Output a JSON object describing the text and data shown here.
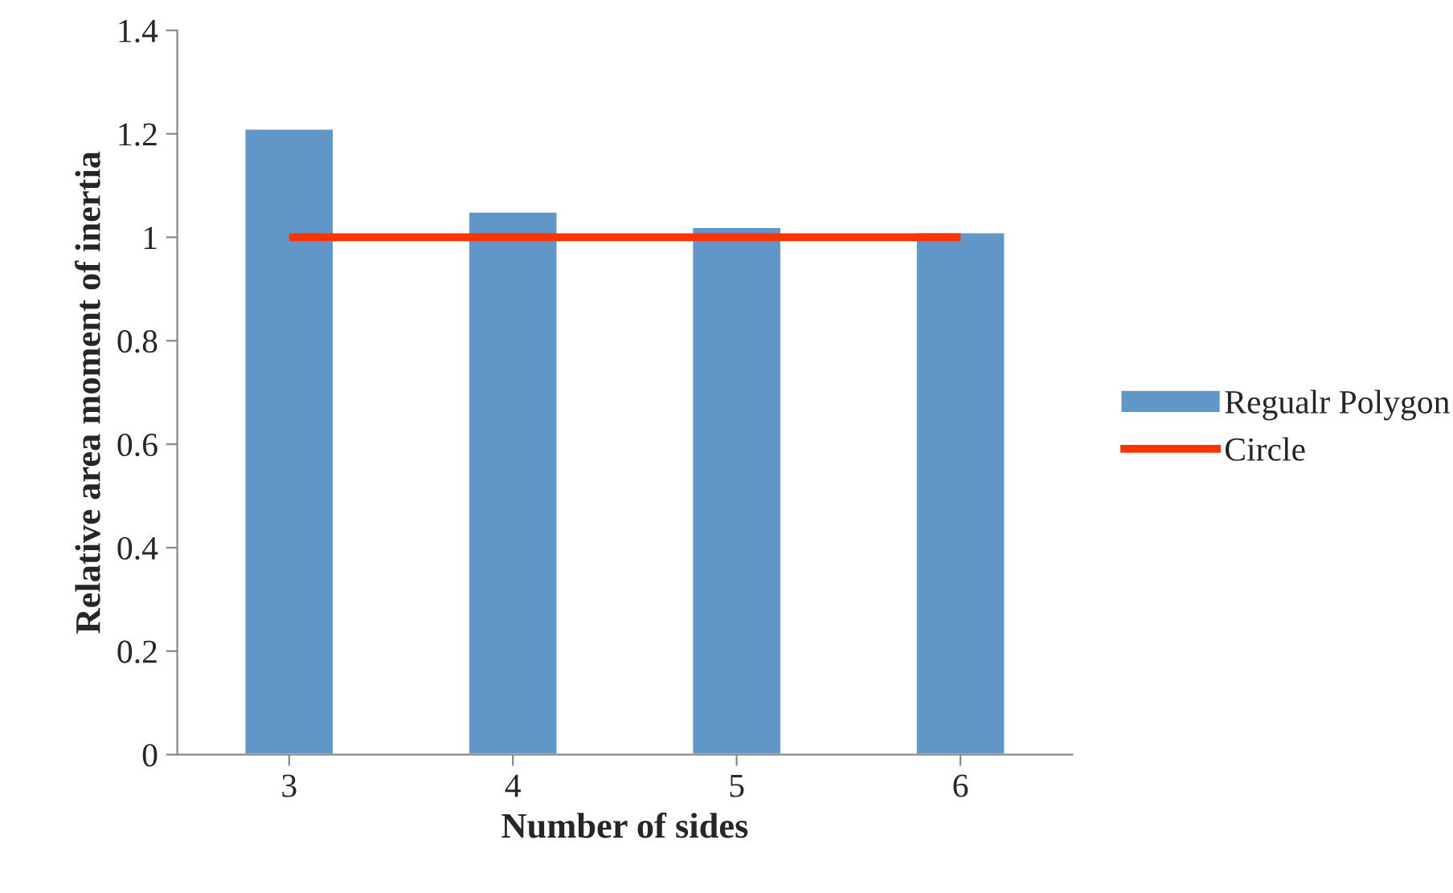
{
  "chart_data": {
    "type": "bar",
    "xlabel": "Number of sides",
    "ylabel": "Relative area moment of inertia",
    "categories": [
      "3",
      "4",
      "5",
      "6"
    ],
    "series": [
      {
        "name": "Regualr Polygon",
        "color": "#6096c8",
        "values": [
          1.21,
          1.05,
          1.02,
          1.01
        ]
      },
      {
        "name": "Circle",
        "type": "line",
        "color": "#ff3300",
        "values": [
          1,
          1,
          1,
          1
        ]
      }
    ],
    "ylim": [
      0,
      1.4
    ],
    "yticks": [
      0,
      0.2,
      0.4,
      0.6,
      0.8,
      1,
      1.2,
      1.4
    ],
    "grid": false,
    "legend": "right"
  }
}
